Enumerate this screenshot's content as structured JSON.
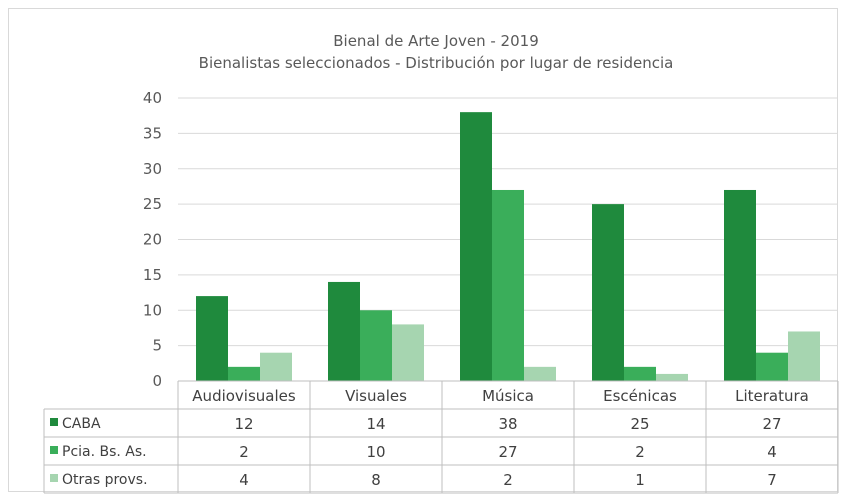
{
  "chart_data": {
    "type": "bar",
    "title": "Bienal de Arte Joven - 2019",
    "subtitle": "Bienalistas seleccionados - Distribución por lugar de residencia",
    "categories": [
      "Audiovisuales",
      "Visuales",
      "Música",
      "Escénicas",
      "Literatura"
    ],
    "series": [
      {
        "name": "CABA",
        "values": [
          12,
          14,
          38,
          25,
          27
        ],
        "color": "#1f8a3d"
      },
      {
        "name": "Pcia. Bs. As.",
        "values": [
          2,
          10,
          27,
          2,
          4
        ],
        "color": "#3aae5a"
      },
      {
        "name": "Otras provs.",
        "values": [
          4,
          8,
          2,
          1,
          7
        ],
        "color": "#a6d5b0"
      }
    ],
    "ylim": [
      0,
      40
    ],
    "yticks": [
      0,
      5,
      10,
      15,
      20,
      25,
      30,
      35,
      40
    ],
    "grid": true,
    "data_table": true
  }
}
